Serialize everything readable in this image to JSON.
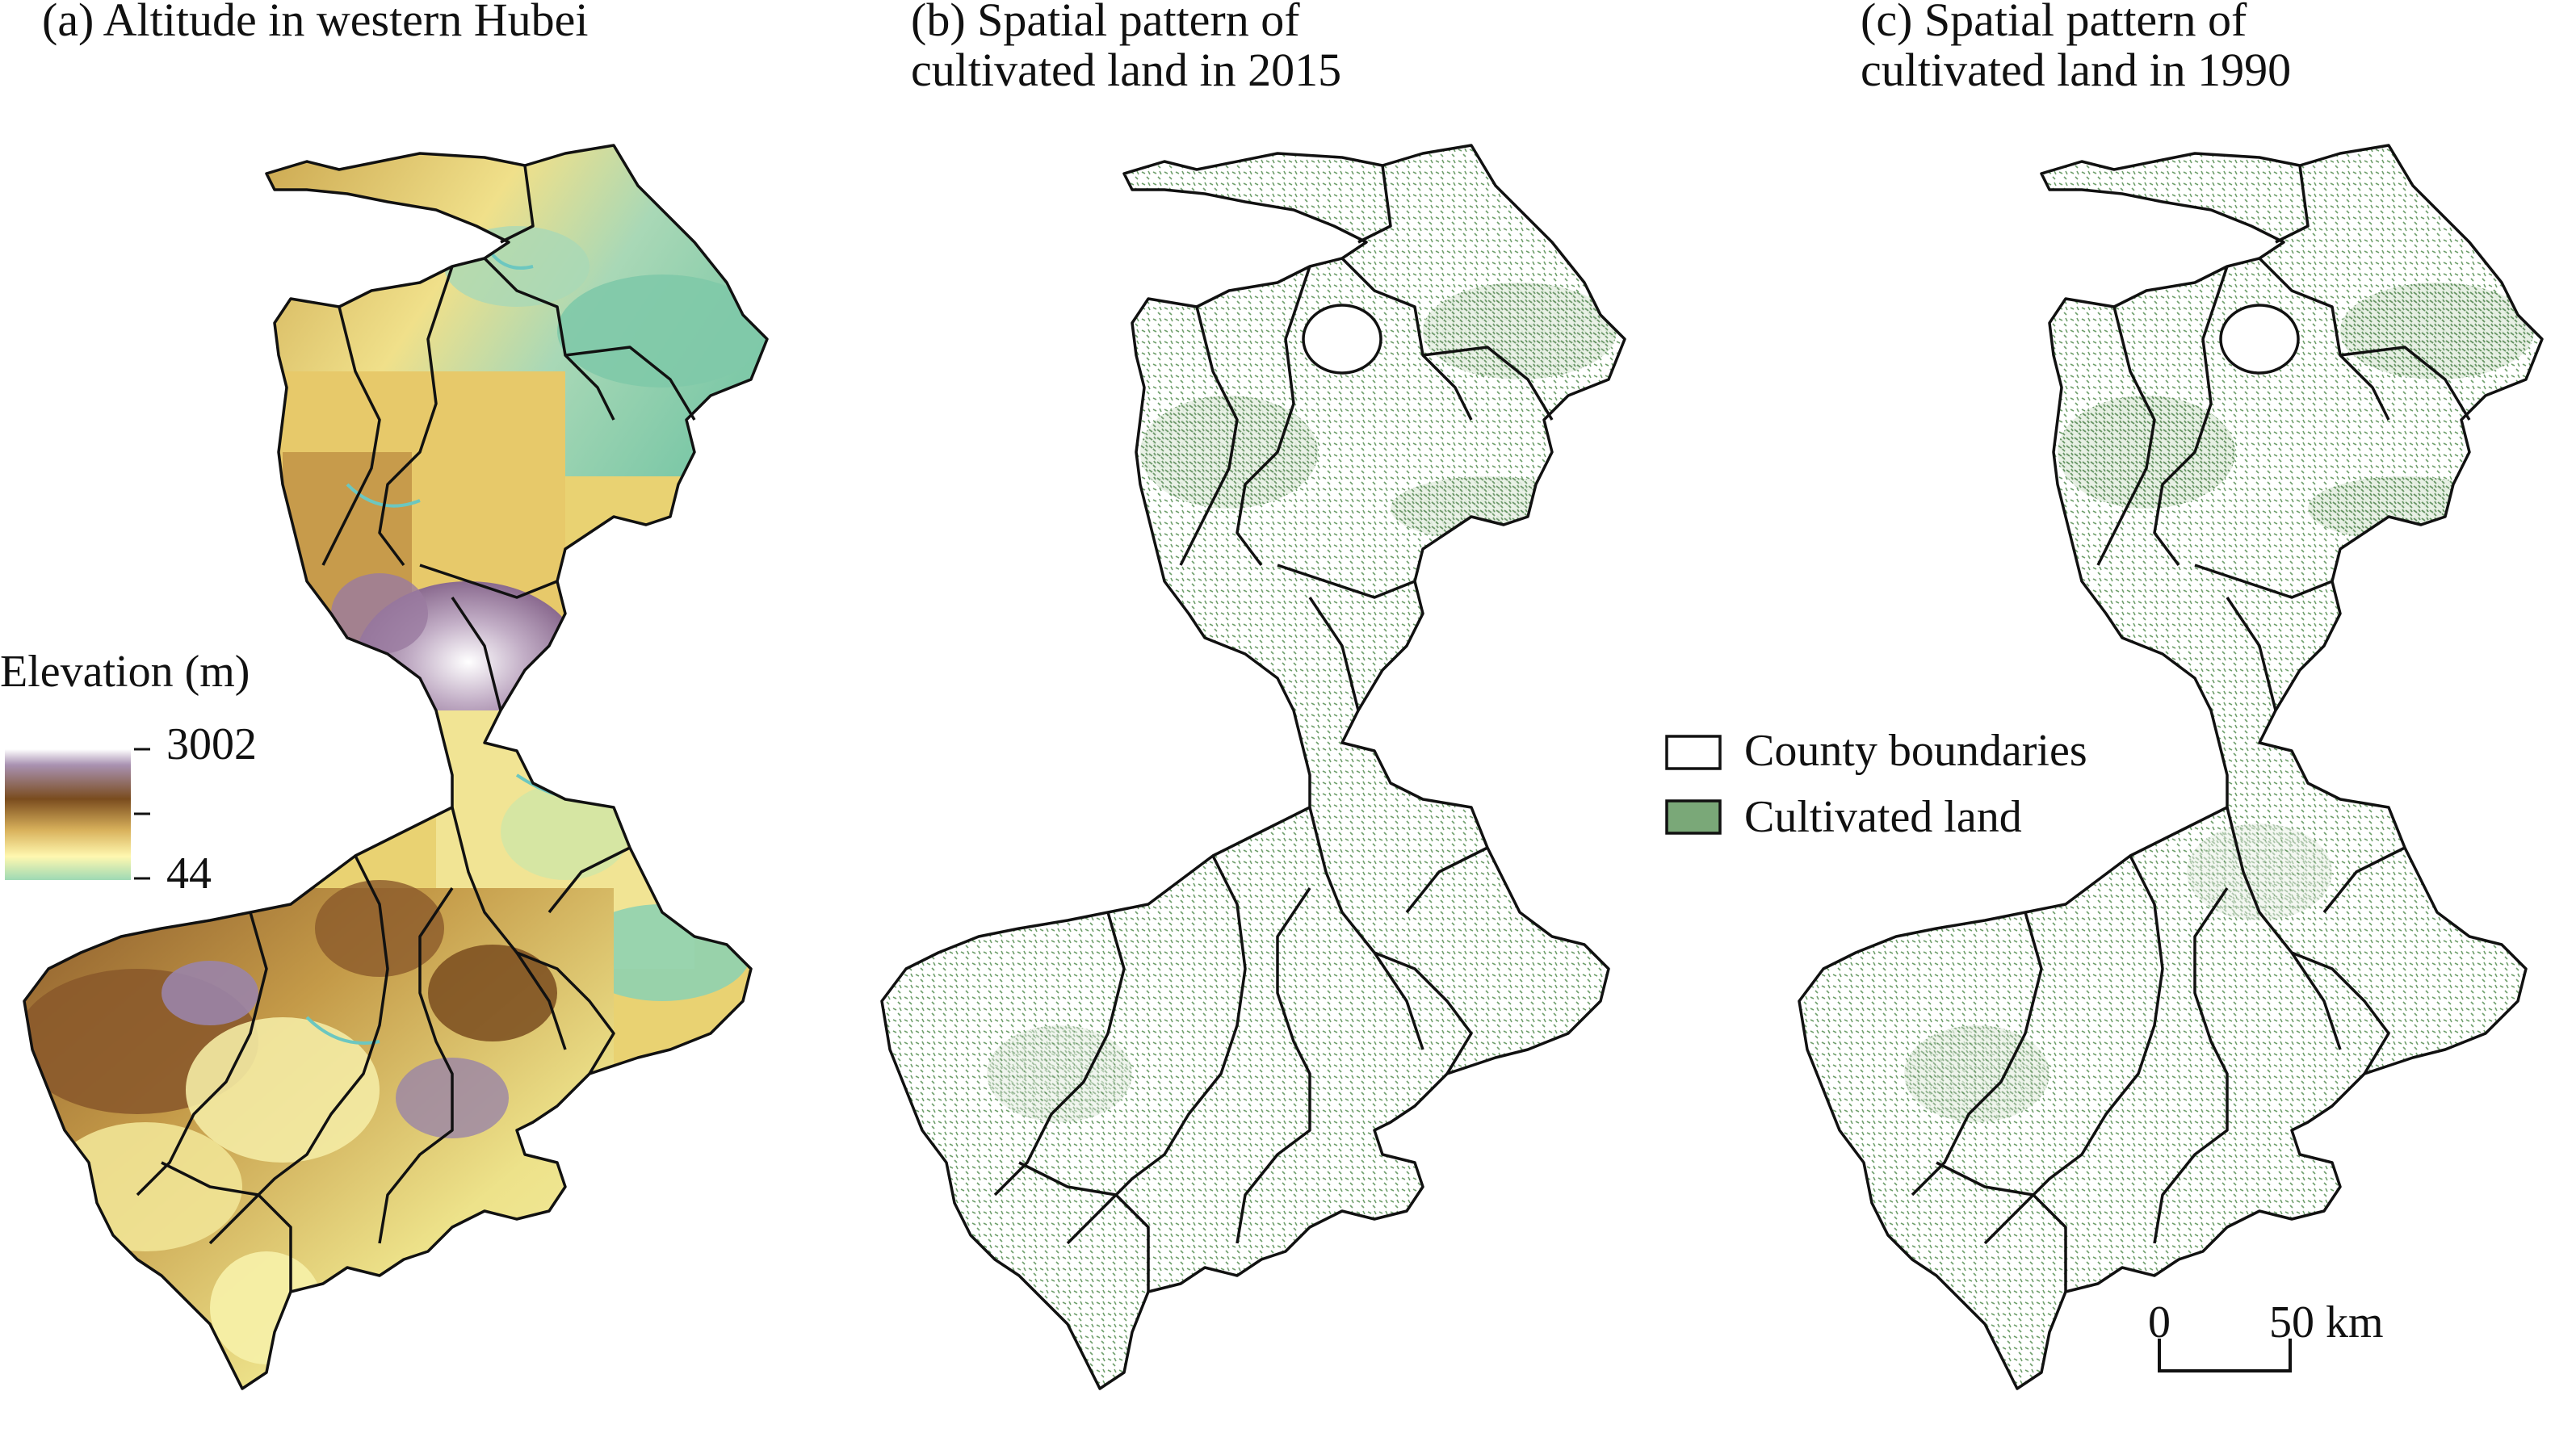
{
  "panels": {
    "a": {
      "title": "(a) Altitude in western Hubei"
    },
    "b": {
      "title": "(b) Spatial pattern of\ncultivated land in 2015"
    },
    "c": {
      "title": "(c) Spatial pattern of\ncultivated land in 1990"
    }
  },
  "elevation_legend": {
    "title": "Elevation (m)",
    "max": "3002",
    "min": "44",
    "ramp_colors": [
      "#9ed9b4",
      "#fff8b0",
      "#d9b25c",
      "#7a4c1e",
      "#a992b2",
      "#ffffff"
    ]
  },
  "land_legend": {
    "items": [
      {
        "label": "County boundaries",
        "swatch": "#ffffff"
      },
      {
        "label": "Cultivated land",
        "swatch": "#7aa878"
      }
    ]
  },
  "scale_bar": {
    "start": "0",
    "end": "50 km"
  },
  "colors": {
    "boundary": "#111111",
    "cultivated": "#6f9f6c",
    "lowland": "#86cfae",
    "highland": "#8b5a2b"
  }
}
